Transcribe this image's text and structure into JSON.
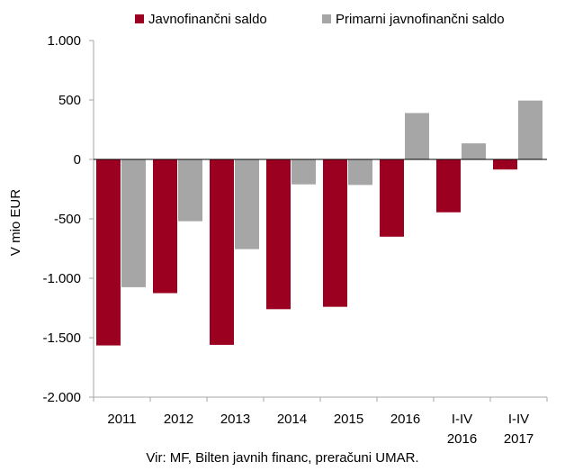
{
  "chart_data": {
    "type": "bar",
    "categories": [
      [
        "2011"
      ],
      [
        "2012"
      ],
      [
        "2013"
      ],
      [
        "2014"
      ],
      [
        "2015"
      ],
      [
        "2016"
      ],
      [
        "I-IV",
        "2016"
      ],
      [
        "I-IV",
        "2017"
      ]
    ],
    "series": [
      {
        "name": "Javnofinančni saldo",
        "color": "#9b0020",
        "values": [
          -1565,
          -1125,
          -1560,
          -1260,
          -1240,
          -650,
          -445,
          -85
        ]
      },
      {
        "name": "Primarni javnofinančni saldo",
        "color": "#a6a6a6",
        "values": [
          -1075,
          -520,
          -755,
          -210,
          -215,
          390,
          135,
          495
        ]
      }
    ],
    "ylabel": "V mio EUR",
    "ylim": [
      -2000,
      1000
    ],
    "yticks": [
      1000,
      500,
      0,
      -500,
      -1000,
      -1500,
      -2000
    ],
    "ytick_labels": [
      "1.000",
      "500",
      "0",
      "-500",
      "-1.000",
      "-1.500",
      "-2.000"
    ],
    "legend_position": "top",
    "grid": false
  },
  "source_note": "Vir: MF, Bilten javnih financ, preračuni UMAR."
}
